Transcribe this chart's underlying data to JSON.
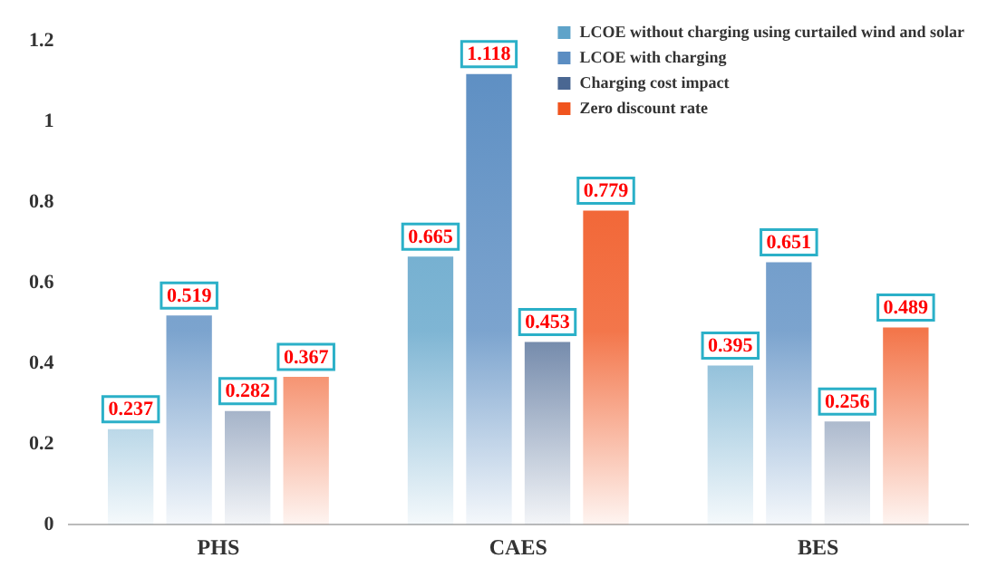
{
  "chart_data": {
    "type": "bar",
    "categories": [
      "PHS",
      "CAES",
      "BES"
    ],
    "series": [
      {
        "name": "LCOE without charging using curtailed wind and solar",
        "color": "#5fa3c9",
        "values": [
          0.237,
          0.665,
          0.395
        ]
      },
      {
        "name": "LCOE with charging",
        "color": "#5b8dc2",
        "values": [
          0.519,
          1.118,
          0.651
        ]
      },
      {
        "name": "Charging cost impact",
        "color": "#4a6792",
        "values": [
          0.282,
          0.453,
          0.256
        ]
      },
      {
        "name": "Zero discount rate",
        "color": "#f0541e",
        "values": [
          0.367,
          0.779,
          0.489
        ]
      }
    ],
    "ylim": [
      0,
      1.2
    ],
    "yticks": [
      0,
      0.2,
      0.4,
      0.6,
      0.8,
      1,
      1.2
    ],
    "grid": false,
    "legend": "top right",
    "data_labels": true
  }
}
